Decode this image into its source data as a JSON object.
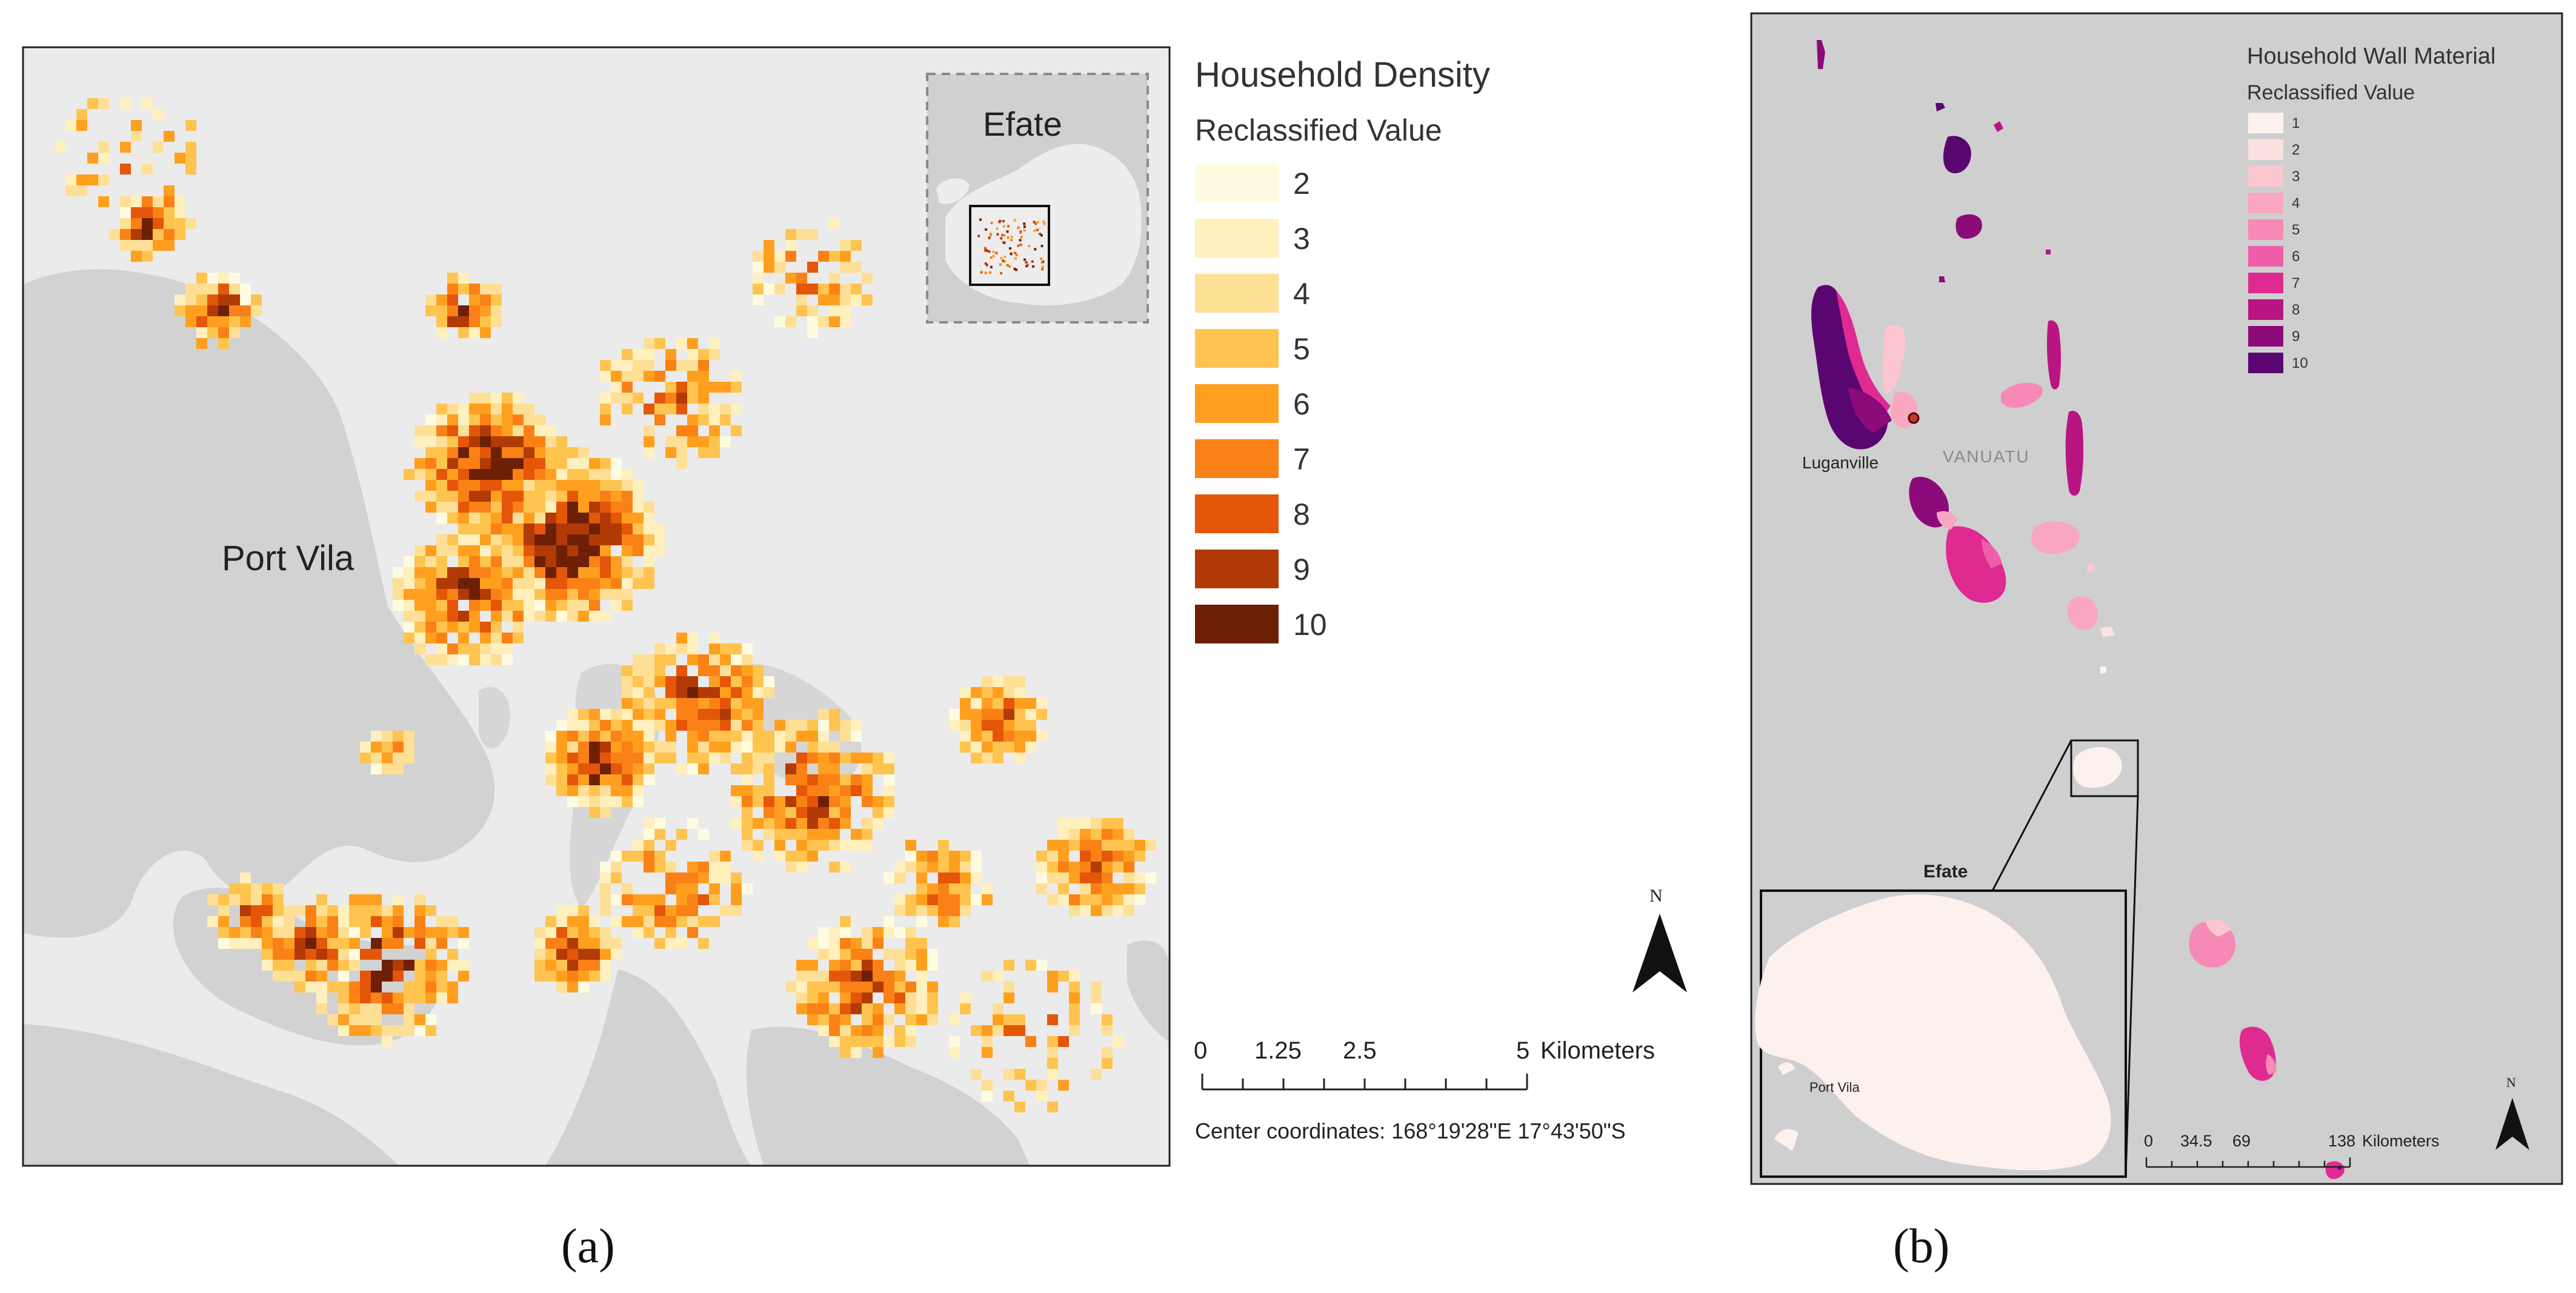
{
  "panel_a": {
    "caption": "(a)",
    "legend": {
      "title": "Household Density",
      "subtitle": "Reclassified Value",
      "classes": [
        {
          "label": "2",
          "color": "#fffbe0"
        },
        {
          "label": "3",
          "color": "#fff0bd"
        },
        {
          "label": "4",
          "color": "#fedf96"
        },
        {
          "label": "5",
          "color": "#fec44f"
        },
        {
          "label": "6",
          "color": "#fe9f1f"
        },
        {
          "label": "7",
          "color": "#f98116"
        },
        {
          "label": "8",
          "color": "#e45609"
        },
        {
          "label": "9",
          "color": "#b23a06"
        },
        {
          "label": "10",
          "color": "#6e2006"
        }
      ]
    },
    "place_label": "Port Vila",
    "inset_label": "Efate",
    "north_label": "N",
    "scale": {
      "ticks": [
        "0",
        "1.25",
        "2.5",
        "5"
      ],
      "unit": "Kilometers"
    },
    "center_coordinates": "Center coordinates: 168°19'28\"E 17°43'50\"S"
  },
  "panel_b": {
    "caption": "(b)",
    "legend": {
      "title": "Household Wall Material",
      "subtitle": "Reclassified Value",
      "classes": [
        {
          "label": "1",
          "color": "#fdf1ee"
        },
        {
          "label": "2",
          "color": "#fbe1e0"
        },
        {
          "label": "3",
          "color": "#fbc6cf"
        },
        {
          "label": "4",
          "color": "#f9a6c0"
        },
        {
          "label": "5",
          "color": "#f789b6"
        },
        {
          "label": "6",
          "color": "#ef5ea8"
        },
        {
          "label": "7",
          "color": "#df2a92"
        },
        {
          "label": "8",
          "color": "#b81581"
        },
        {
          "label": "9",
          "color": "#8d0a7a"
        },
        {
          "label": "10",
          "color": "#5a0670"
        }
      ]
    },
    "labels": {
      "luganville": "Luganville",
      "country": "VANUATU",
      "inset_title": "Efate",
      "inset_city": "Port Vila"
    },
    "north_label": "N",
    "scale": {
      "ticks": [
        "0",
        "34.5",
        "69",
        "138"
      ],
      "unit": "Kilometers"
    }
  },
  "colors": {
    "land_light": "#ebebeb",
    "water_gray": "#d3d3d3",
    "map_b_background": "#d0d0d0"
  }
}
